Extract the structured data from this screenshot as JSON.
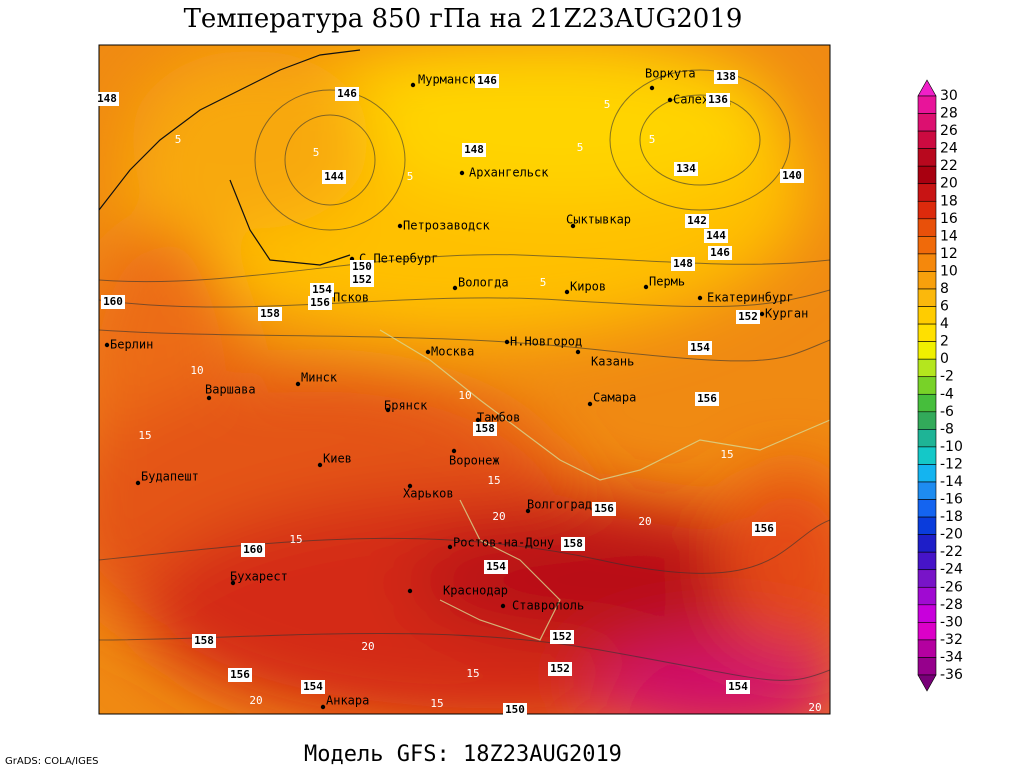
{
  "title": "Температура 850 гПа на 21Z23AUG2019",
  "footer": "Модель GFS: 18Z23AUG2019",
  "credit": "GrADS: COLA/IGES",
  "map": {
    "cities": [
      "Мурманск",
      "Воркута",
      "Салехард",
      "Архангельск",
      "Петрозаводск",
      "Сыктывкар",
      "С.Петербург",
      "Вологда",
      "Киров",
      "Пермь",
      "Екатеринбург",
      "Курган",
      "Псков",
      "Берлин",
      "Москва",
      "Н.Новгород",
      "Казань",
      "Варшава",
      "Минск",
      "Брянск",
      "Самара",
      "Тамбов",
      "Киев",
      "Воронеж",
      "Будапешт",
      "Харьков",
      "Волгоград",
      "Ростов-на-Дону",
      "Бухарест",
      "Краснодар",
      "Ставрополь",
      "Анкара"
    ],
    "height_labels": [
      146,
      146,
      148,
      144,
      138,
      136,
      134,
      140,
      142,
      144,
      146,
      148,
      150,
      152,
      154,
      156,
      160,
      158,
      152,
      154,
      156,
      158,
      156,
      160,
      158,
      154,
      156,
      152,
      152,
      158,
      156,
      154,
      154,
      150,
      148
    ],
    "temp_labels": [
      5,
      5,
      5,
      5,
      5,
      5,
      5,
      10,
      10,
      15,
      15,
      15,
      20,
      20,
      15,
      20,
      15,
      20,
      15,
      20
    ]
  },
  "colorbar": {
    "labels": [
      30,
      28,
      26,
      24,
      22,
      20,
      18,
      16,
      14,
      12,
      10,
      8,
      6,
      4,
      2,
      0,
      -2,
      -4,
      -6,
      -8,
      -10,
      -12,
      -14,
      -16,
      -18,
      -20,
      -22,
      -24,
      -26,
      -28,
      -30,
      -32,
      -34,
      -36
    ],
    "colors": [
      "#f020c8",
      "#e8149a",
      "#dc1070",
      "#cc0a40",
      "#b8081e",
      "#a80010",
      "#c81414",
      "#dc2a0c",
      "#e8500a",
      "#f06a0a",
      "#f5880c",
      "#f8a00c",
      "#fbb80c",
      "#ffcc00",
      "#ffe000",
      "#f0f000",
      "#b4e61e",
      "#78d228",
      "#46be3c",
      "#32aa5a",
      "#1eb496",
      "#14c8c8",
      "#14b4f0",
      "#1e8cf0",
      "#1464f0",
      "#0a3cdc",
      "#1e1ec8",
      "#4614c8",
      "#7814c8",
      "#a00ad2",
      "#c800dc",
      "#dc00c8",
      "#b400a0",
      "#96008c",
      "#780078"
    ]
  }
}
